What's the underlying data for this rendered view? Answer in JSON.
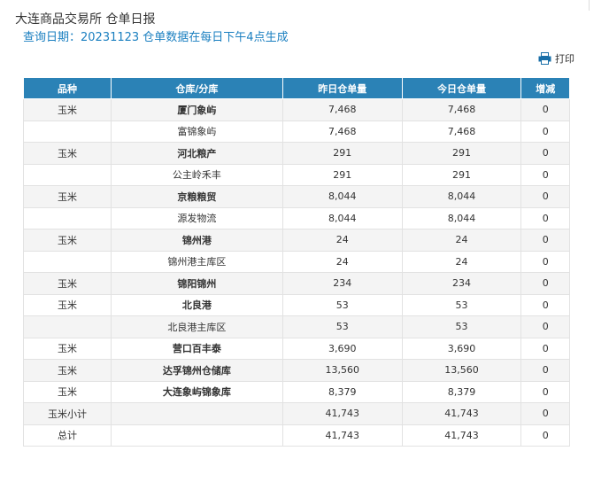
{
  "header": {
    "title": "大连商品交易所 仓单日报",
    "subtitle": "查询日期：20231123 仓单数据在每日下午4点生成",
    "print": "打印"
  },
  "table": {
    "columns": [
      "品种",
      "仓库/分库",
      "昨日仓单量",
      "今日仓单量",
      "增减"
    ],
    "rows": [
      [
        "玉米",
        "厦门象屿",
        "7,468",
        "7,468",
        "0"
      ],
      [
        null,
        "富锦象屿",
        "7,468",
        "7,468",
        "0"
      ],
      [
        "玉米",
        "河北粮产",
        "291",
        "291",
        "0"
      ],
      [
        null,
        "公主岭禾丰",
        "291",
        "291",
        "0"
      ],
      [
        "玉米",
        "京粮粮贸",
        "8,044",
        "8,044",
        "0"
      ],
      [
        null,
        "源发物流",
        "8,044",
        "8,044",
        "0"
      ],
      [
        "玉米",
        "锦州港",
        "24",
        "24",
        "0"
      ],
      [
        null,
        "锦州港主库区",
        "24",
        "24",
        "0"
      ],
      [
        "玉米",
        "锦阳锦州",
        "234",
        "234",
        "0"
      ],
      [
        "玉米",
        "北良港",
        "53",
        "53",
        "0"
      ],
      [
        null,
        "北良港主库区",
        "53",
        "53",
        "0"
      ],
      [
        "玉米",
        "营口百丰泰",
        "3,690",
        "3,690",
        "0"
      ],
      [
        "玉米",
        "达孚锦州仓储库",
        "13,560",
        "13,560",
        "0"
      ],
      [
        "玉米",
        "大连象屿锦象库",
        "8,379",
        "8,379",
        "0"
      ],
      [
        "玉米小计",
        null,
        "41,743",
        "41,743",
        "0"
      ],
      [
        "总计",
        null,
        "41,743",
        "41,743",
        "0"
      ]
    ]
  }
}
